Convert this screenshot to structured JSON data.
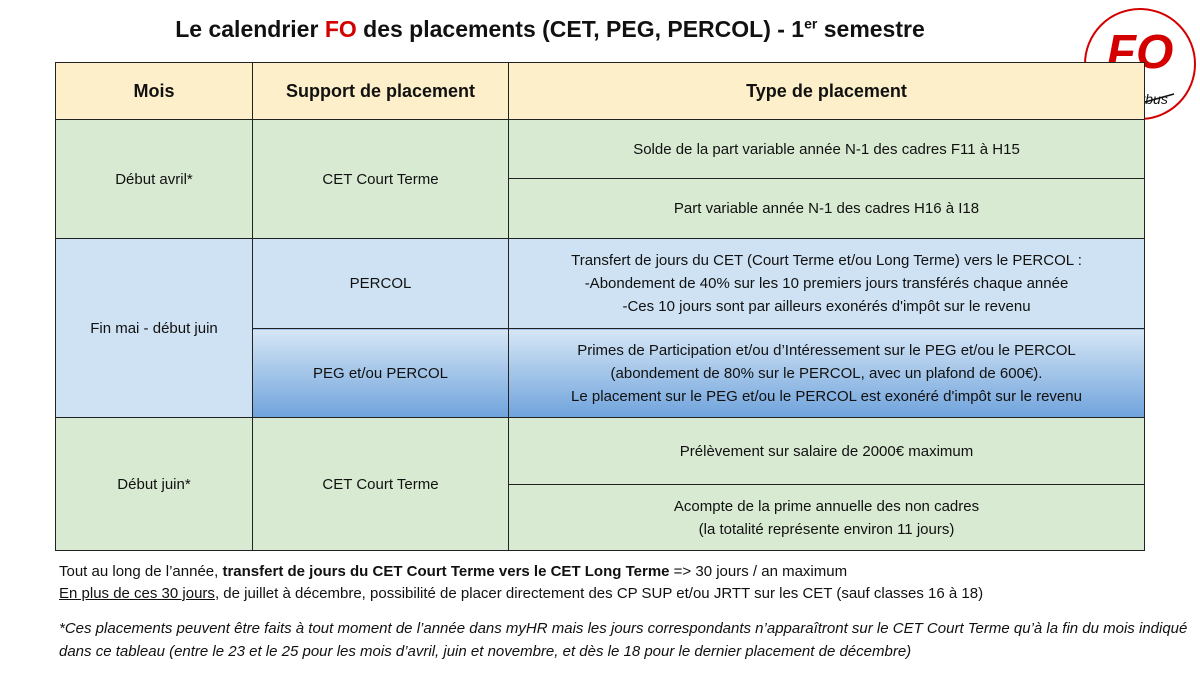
{
  "title": {
    "before": "Le calendrier ",
    "highlight": "FO",
    "after": " des placements (CET, PEG, PERCOL) - 1",
    "sup": "er",
    "end": " semestre"
  },
  "logo": {
    "text": "FO",
    "sub": "Airbus",
    "color": "#d40000"
  },
  "table": {
    "headers": [
      "Mois",
      "Support de placement",
      "Type de placement"
    ],
    "rows": [
      {
        "mois": "Début avril*",
        "support": "CET Court Terme",
        "types": [
          "Solde de la part variable année N-1 des cadres F11 à H15",
          "Part variable année N-1 des cadres H16 à I18"
        ]
      },
      {
        "mois": "Fin mai - début juin",
        "sub": [
          {
            "support": "PERCOL",
            "lines": [
              "Transfert de jours du CET (Court Terme et/ou Long Terme) vers le PERCOL :",
              "-Abondement de 40% sur les 10 premiers jours transférés chaque année",
              "-Ces 10 jours sont par ailleurs exonérés d'impôt sur le revenu"
            ]
          },
          {
            "support": "PEG et/ou PERCOL",
            "lines": [
              "Primes de Participation et/ou d’Intéressement sur le PEG et/ou le PERCOL",
              "(abondement de 80% sur le PERCOL, avec un plafond de 600€).",
              "Le placement sur le PEG et/ou le PERCOL est exonéré d'impôt sur le revenu"
            ]
          }
        ]
      },
      {
        "mois": "Début juin*",
        "support": "CET Court Terme",
        "types": [
          [
            "Prélèvement sur salaire de 2000€ maximum"
          ],
          [
            "Acompte de la prime annuelle des non cadres",
            "(la totalité représente environ 11 jours)"
          ]
        ]
      }
    ]
  },
  "notes": {
    "line1_a": "Tout au long de l’année, ",
    "line1_bold": "transfert de jours du CET Court Terme vers le CET Long Terme",
    "line1_b": " => 30 jours / an maximum",
    "line2_u": "En plus de ces 30 jours",
    "line2_b": ", de juillet à décembre, possibilité de placer directement des CP SUP et/ou JRTT sur les CET (sauf classes 16 à 18)",
    "footnote": "*Ces placements peuvent être faits à tout moment de l’année dans myHR mais les jours correspondants n’apparaîtront sur le CET Court Terme qu’à la fin du mois indiqué dans ce tableau (entre le 23 et le 25 pour les mois d’avril, juin et novembre, et dès le 18 pour le dernier placement de décembre)"
  }
}
